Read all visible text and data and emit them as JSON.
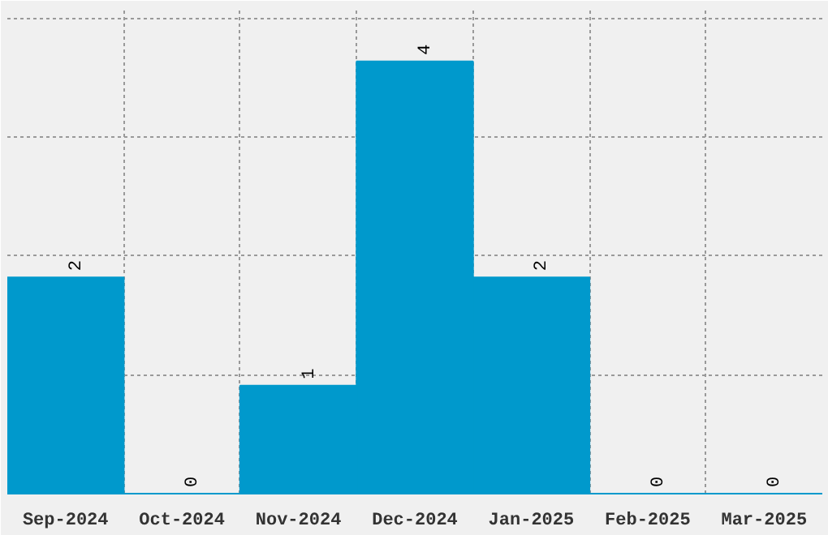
{
  "chart_data": {
    "type": "bar",
    "categories": [
      "Sep-2024",
      "Oct-2024",
      "Nov-2024",
      "Dec-2024",
      "Jan-2025",
      "Feb-2025",
      "Mar-2025"
    ],
    "values": [
      2,
      0,
      1,
      4,
      2,
      0,
      0
    ],
    "color": "#0099cc",
    "data_labels": true,
    "grid": true,
    "tick_labels": "x",
    "ylim": [
      0,
      4.5
    ],
    "yticks": [
      {
        "value": 1.1,
        "label": null
      },
      {
        "value": 2.2,
        "label": null
      },
      {
        "value": 3.3,
        "label": null
      },
      {
        "value": 4.4,
        "label": null
      }
    ]
  }
}
